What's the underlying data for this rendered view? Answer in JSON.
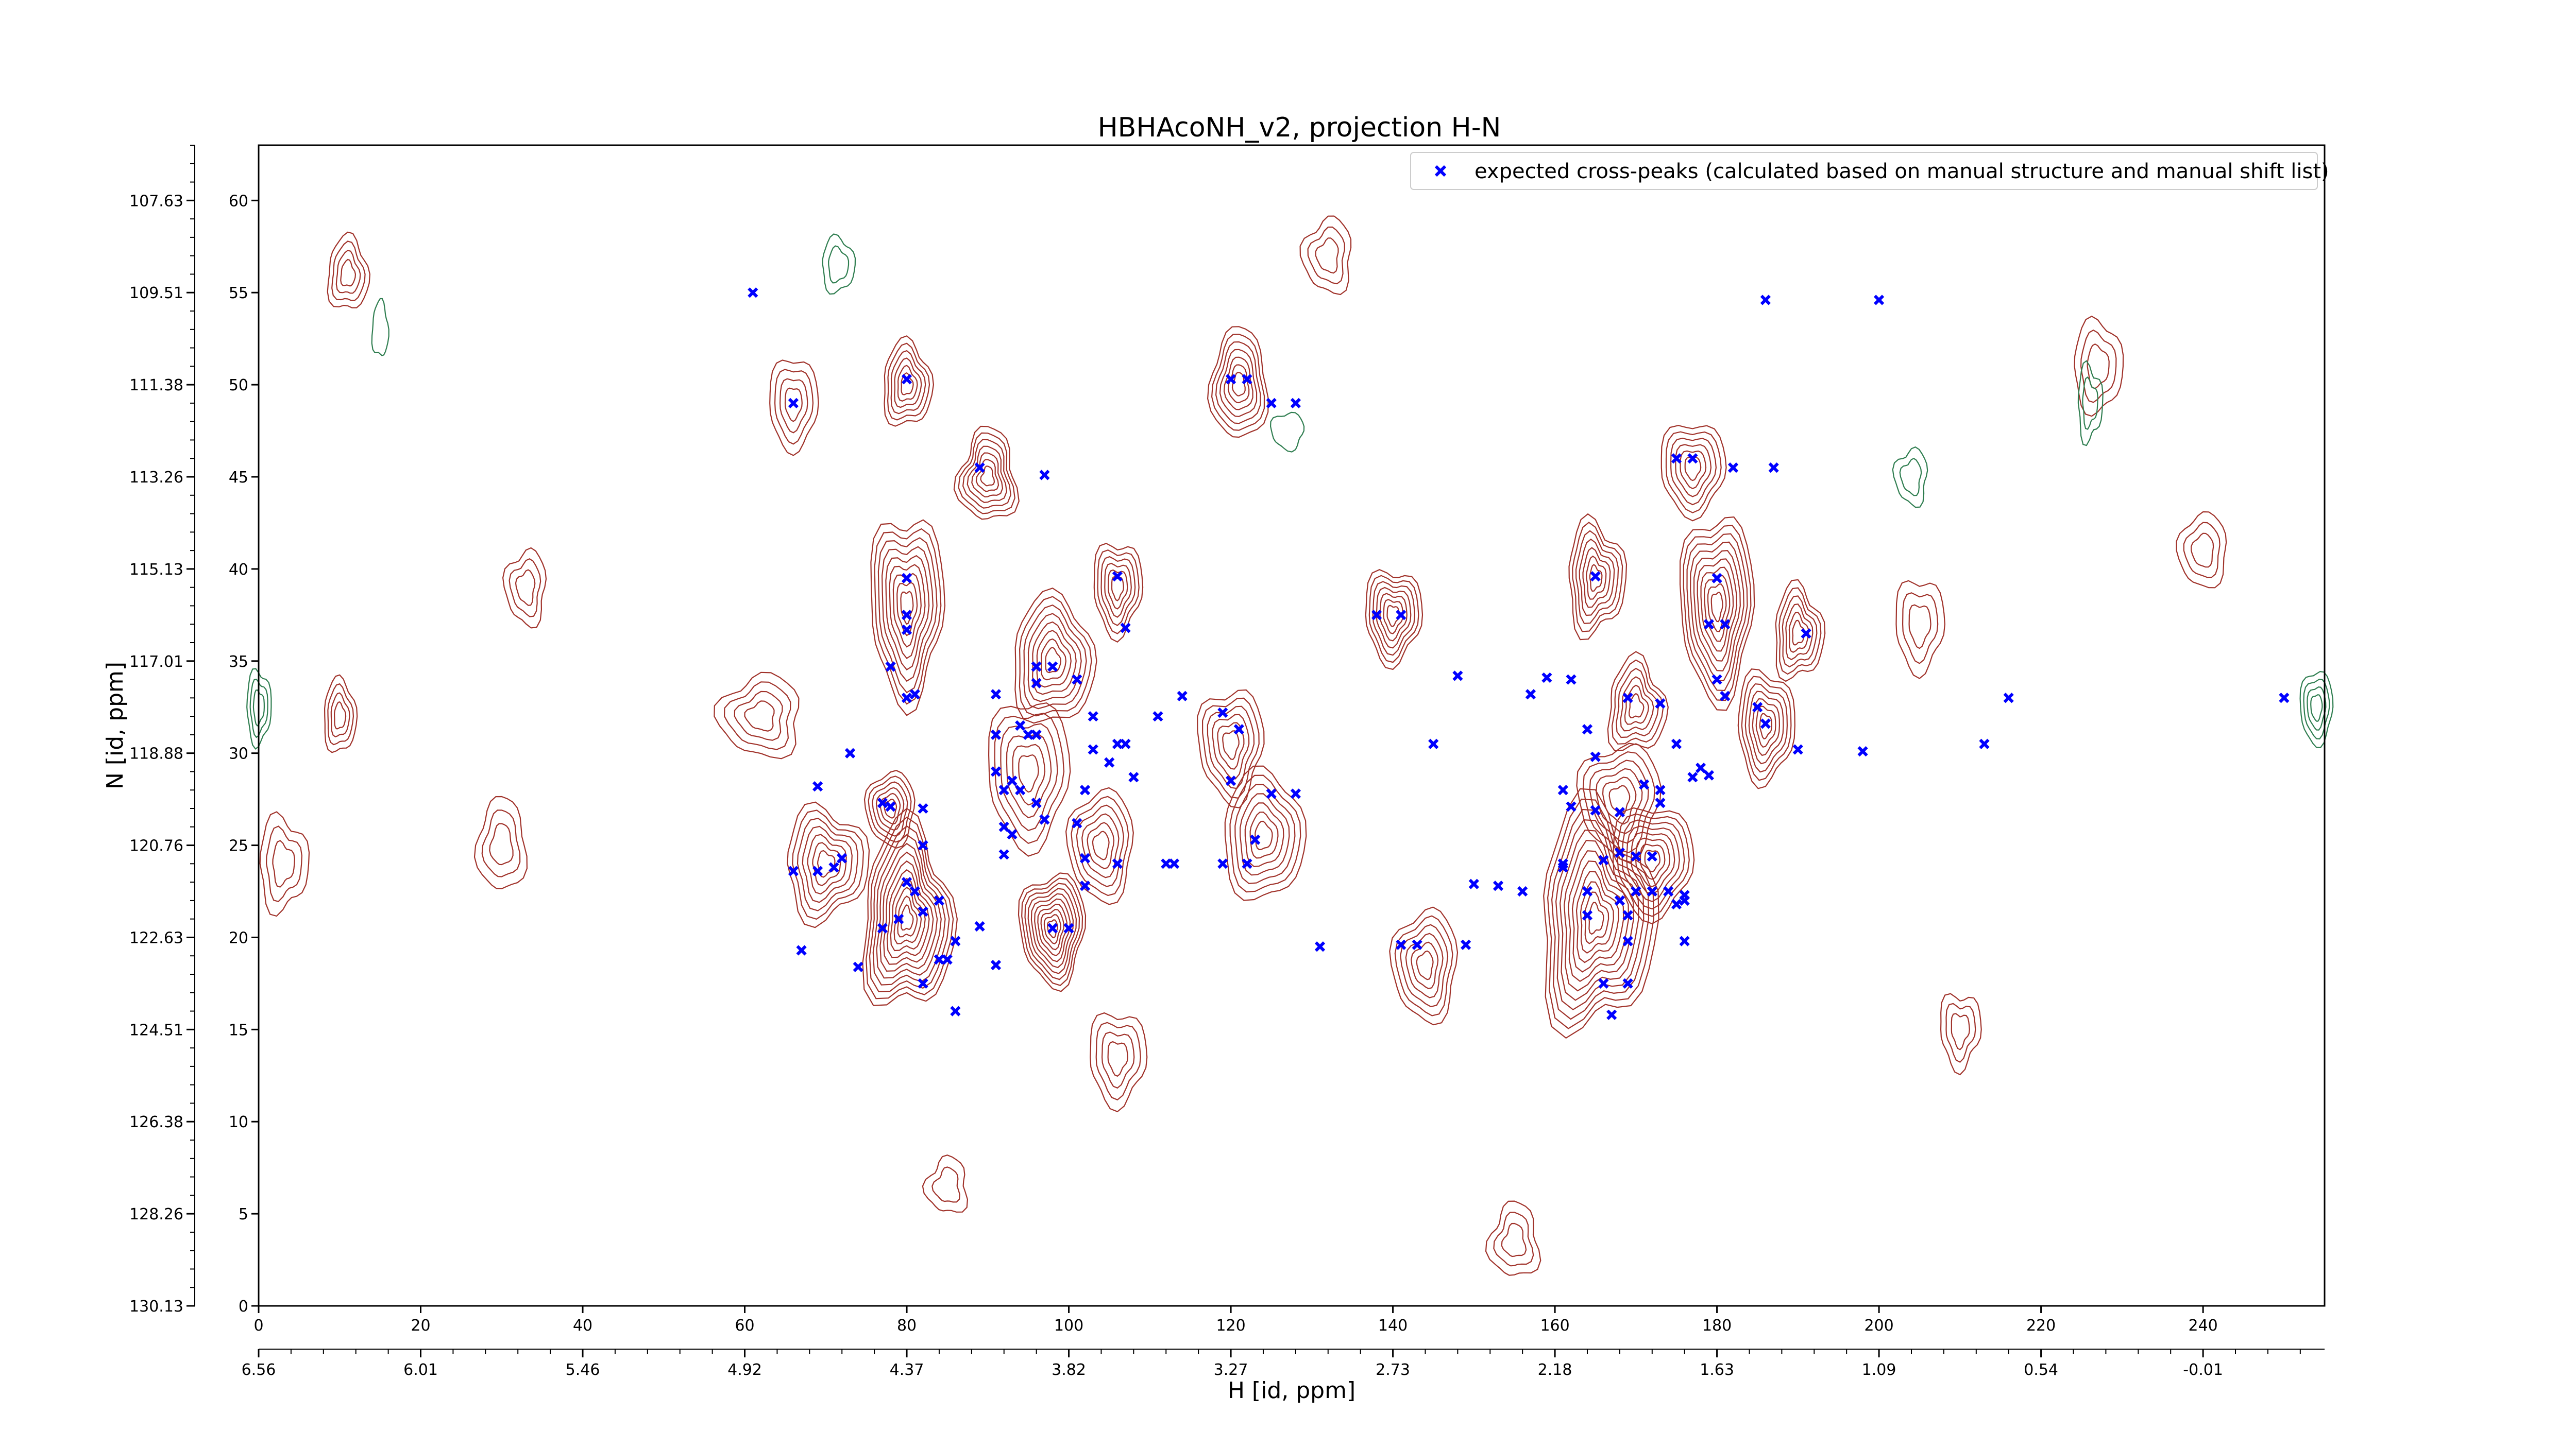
{
  "chart_data": {
    "type": "scatter",
    "title": "HBHAcoNH_v2, projection H-N",
    "xlabel": "H [id, ppm]",
    "ylabel": "N [id, ppm]",
    "xlim": [
      0,
      255
    ],
    "ylim": [
      0,
      63
    ],
    "x_ticks": [
      0,
      20,
      40,
      60,
      80,
      100,
      120,
      140,
      160,
      180,
      200,
      220,
      240
    ],
    "y_ticks": [
      0,
      5,
      10,
      15,
      20,
      25,
      30,
      35,
      40,
      45,
      50,
      55,
      60
    ],
    "secondary_x_ticks": {
      "positions": [
        0,
        20,
        40,
        60,
        80,
        100,
        120,
        140,
        160,
        180,
        200,
        220,
        240
      ],
      "labels": [
        "6.56",
        "6.01",
        "5.46",
        "4.92",
        "4.37",
        "3.82",
        "3.27",
        "2.73",
        "2.18",
        "1.63",
        "1.09",
        "0.54",
        "-0.01"
      ]
    },
    "secondary_y_ticks": {
      "positions": [
        0,
        5,
        10,
        15,
        20,
        25,
        30,
        35,
        40,
        45,
        50,
        55,
        60
      ],
      "labels": [
        "130.13",
        "128.26",
        "126.38",
        "124.51",
        "122.63",
        "120.76",
        "118.88",
        "117.01",
        "115.13",
        "113.26",
        "111.38",
        "109.51",
        "107.63"
      ]
    },
    "legend": {
      "placement": "top-right",
      "entries": [
        "expected cross-peaks (calculated based on manual structure and manual shift list)"
      ]
    },
    "grid": false,
    "colors": {
      "positive_contour": "#a0322a",
      "negative_contour": "#2e7d4f",
      "peak_marker": "#0000ff"
    },
    "series": [
      {
        "name": "expected cross-peaks (calculated based on manual structure and manual shift list)",
        "marker": "x",
        "points": [
          [
            61,
            55
          ],
          [
            66,
            49
          ],
          [
            80,
            50.3
          ],
          [
            89,
            45.5
          ],
          [
            97,
            45.1
          ],
          [
            120,
            50.3
          ],
          [
            122,
            50.3
          ],
          [
            125,
            49
          ],
          [
            128,
            49
          ],
          [
            80,
            39.5
          ],
          [
            80,
            37.5
          ],
          [
            80,
            36.7
          ],
          [
            78,
            34.7
          ],
          [
            80,
            33
          ],
          [
            81,
            33.2
          ],
          [
            96,
            34.7
          ],
          [
            98,
            34.7
          ],
          [
            101,
            34
          ],
          [
            96,
            33.8
          ],
          [
            106,
            39.6
          ],
          [
            107,
            36.8
          ],
          [
            91,
            33.2
          ],
          [
            94,
            31.5
          ],
          [
            95,
            31
          ],
          [
            91,
            31
          ],
          [
            96,
            31
          ],
          [
            91,
            29
          ],
          [
            92,
            28
          ],
          [
            93,
            28.5
          ],
          [
            94,
            28
          ],
          [
            96,
            27.3
          ],
          [
            103,
            32
          ],
          [
            103,
            30.2
          ],
          [
            102,
            28
          ],
          [
            106,
            30.5
          ],
          [
            105,
            29.5
          ],
          [
            111,
            32
          ],
          [
            114,
            33.1
          ],
          [
            119,
            32.2
          ],
          [
            121,
            31.3
          ],
          [
            120,
            28.5
          ],
          [
            73,
            30
          ],
          [
            69,
            28.2
          ],
          [
            77,
            27.3
          ],
          [
            78,
            27.1
          ],
          [
            82,
            27
          ],
          [
            71,
            23.8
          ],
          [
            72,
            24.3
          ],
          [
            69,
            23.6
          ],
          [
            66,
            23.6
          ],
          [
            82,
            25
          ],
          [
            84,
            22
          ],
          [
            81,
            22.5
          ],
          [
            80,
            23
          ],
          [
            79,
            21
          ],
          [
            82,
            21.4
          ],
          [
            77,
            20.5
          ],
          [
            67,
            19.3
          ],
          [
            74,
            18.4
          ],
          [
            84,
            18.8
          ],
          [
            85,
            18.8
          ],
          [
            86,
            19.8
          ],
          [
            82,
            17.5
          ],
          [
            86,
            16
          ],
          [
            91,
            18.5
          ],
          [
            89,
            20.6
          ],
          [
            92,
            24.5
          ],
          [
            92,
            26
          ],
          [
            93,
            25.6
          ],
          [
            97,
            26.4
          ],
          [
            98,
            20.5
          ],
          [
            100,
            20.5
          ],
          [
            101,
            26.2
          ],
          [
            102,
            24.3
          ],
          [
            102,
            22.8
          ],
          [
            106,
            24
          ],
          [
            107,
            30.5
          ],
          [
            108,
            28.7
          ],
          [
            112,
            24
          ],
          [
            113,
            24
          ],
          [
            119,
            24
          ],
          [
            122,
            24
          ],
          [
            123,
            25.3
          ],
          [
            125,
            27.8
          ],
          [
            128,
            27.8
          ],
          [
            131,
            19.5
          ],
          [
            138,
            37.5
          ],
          [
            141,
            37.5
          ],
          [
            148,
            34.2
          ],
          [
            145,
            30.5
          ],
          [
            150,
            22.9
          ],
          [
            153,
            22.8
          ],
          [
            156,
            22.5
          ],
          [
            141,
            19.6
          ],
          [
            143,
            19.6
          ],
          [
            149,
            19.6
          ],
          [
            157,
            33.2
          ],
          [
            159,
            34.1
          ],
          [
            162,
            34
          ],
          [
            164,
            31.3
          ],
          [
            165,
            39.6
          ],
          [
            169,
            33
          ],
          [
            173,
            32.7
          ],
          [
            165,
            29.8
          ],
          [
            161,
            28
          ],
          [
            162,
            27.1
          ],
          [
            165,
            26.9
          ],
          [
            168,
            26.8
          ],
          [
            171,
            28.3
          ],
          [
            173,
            27.3
          ],
          [
            173,
            28
          ],
          [
            175,
            30.5
          ],
          [
            178,
            29.2
          ],
          [
            177,
            28.7
          ],
          [
            179,
            28.8
          ],
          [
            161,
            24
          ],
          [
            161,
            23.8
          ],
          [
            166,
            24.2
          ],
          [
            168,
            24.6
          ],
          [
            170,
            24.4
          ],
          [
            172,
            24.4
          ],
          [
            164,
            22.5
          ],
          [
            168,
            22
          ],
          [
            170,
            22.5
          ],
          [
            172,
            22.5
          ],
          [
            174,
            22.5
          ],
          [
            175,
            21.8
          ],
          [
            176,
            22
          ],
          [
            176,
            22.3
          ],
          [
            164,
            21.2
          ],
          [
            169,
            21.2
          ],
          [
            169,
            19.8
          ],
          [
            176,
            19.8
          ],
          [
            166,
            17.5
          ],
          [
            169,
            17.5
          ],
          [
            167,
            15.8
          ],
          [
            175,
            46
          ],
          [
            177,
            46
          ],
          [
            182,
            45.5
          ],
          [
            187,
            45.5
          ],
          [
            180,
            39.5
          ],
          [
            179,
            37
          ],
          [
            181,
            37
          ],
          [
            191,
            36.5
          ],
          [
            180,
            34
          ],
          [
            181,
            33.1
          ],
          [
            185,
            32.5
          ],
          [
            186,
            31.6
          ],
          [
            190,
            30.2
          ],
          [
            198,
            30.1
          ],
          [
            213,
            30.5
          ],
          [
            216,
            33
          ],
          [
            186,
            54.6
          ],
          [
            200,
            54.6
          ],
          [
            250,
            33
          ]
        ]
      }
    ],
    "contours": [
      {
        "sign": "positive",
        "center": [
          80,
          38
        ],
        "spread": [
          4.5,
          5
        ],
        "levels": 9
      },
      {
        "sign": "positive",
        "center": [
          98,
          35
        ],
        "spread": [
          5,
          3.5
        ],
        "levels": 8
      },
      {
        "sign": "positive",
        "center": [
          106,
          39
        ],
        "spread": [
          3,
          2.5
        ],
        "levels": 6
      },
      {
        "sign": "positive",
        "center": [
          80,
          21
        ],
        "spread": [
          5.5,
          5
        ],
        "levels": 12
      },
      {
        "sign": "positive",
        "center": [
          98,
          20.5
        ],
        "spread": [
          4,
          3
        ],
        "levels": 10
      },
      {
        "sign": "positive",
        "center": [
          70,
          24
        ],
        "spread": [
          5,
          3
        ],
        "levels": 7
      },
      {
        "sign": "positive",
        "center": [
          78,
          27
        ],
        "spread": [
          3,
          2
        ],
        "levels": 6
      },
      {
        "sign": "positive",
        "center": [
          95,
          29
        ],
        "spread": [
          5,
          4
        ],
        "levels": 6
      },
      {
        "sign": "positive",
        "center": [
          104,
          25
        ],
        "spread": [
          4,
          3
        ],
        "levels": 6
      },
      {
        "sign": "positive",
        "center": [
          120,
          30.5
        ],
        "spread": [
          4,
          3
        ],
        "levels": 6
      },
      {
        "sign": "positive",
        "center": [
          124,
          25.5
        ],
        "spread": [
          5,
          3.5
        ],
        "levels": 7
      },
      {
        "sign": "positive",
        "center": [
          90,
          45
        ],
        "spread": [
          3.5,
          2.5
        ],
        "levels": 7
      },
      {
        "sign": "positive",
        "center": [
          80,
          50
        ],
        "spread": [
          3,
          2.3
        ],
        "levels": 6
      },
      {
        "sign": "positive",
        "center": [
          121,
          50
        ],
        "spread": [
          3.5,
          3
        ],
        "levels": 7
      },
      {
        "sign": "positive",
        "center": [
          140,
          37.5
        ],
        "spread": [
          3.5,
          2.5
        ],
        "levels": 7
      },
      {
        "sign": "positive",
        "center": [
          144,
          18.5
        ],
        "spread": [
          4,
          3
        ],
        "levels": 6
      },
      {
        "sign": "positive",
        "center": [
          165,
          21
        ],
        "spread": [
          7,
          6
        ],
        "levels": 12
      },
      {
        "sign": "positive",
        "center": [
          172,
          24.2
        ],
        "spread": [
          5,
          3
        ],
        "levels": 8
      },
      {
        "sign": "positive",
        "center": [
          180,
          38
        ],
        "spread": [
          4.5,
          5
        ],
        "levels": 10
      },
      {
        "sign": "positive",
        "center": [
          190,
          36.5
        ],
        "spread": [
          3,
          2.5
        ],
        "levels": 6
      },
      {
        "sign": "positive",
        "center": [
          186,
          31.5
        ],
        "spread": [
          3.5,
          3
        ],
        "levels": 7
      },
      {
        "sign": "positive",
        "center": [
          170,
          32.5
        ],
        "spread": [
          3.5,
          2.5
        ],
        "levels": 6
      },
      {
        "sign": "positive",
        "center": [
          165,
          39.5
        ],
        "spread": [
          3.5,
          3
        ],
        "levels": 7
      },
      {
        "sign": "positive",
        "center": [
          177,
          45.5
        ],
        "spread": [
          4,
          2.5
        ],
        "levels": 6
      },
      {
        "sign": "positive",
        "center": [
          168,
          27.5
        ],
        "spread": [
          5,
          3
        ],
        "levels": 6
      },
      {
        "sign": "positive",
        "center": [
          62,
          32
        ],
        "spread": [
          5,
          2.2
        ],
        "levels": 4
      },
      {
        "sign": "positive",
        "center": [
          10,
          32
        ],
        "spread": [
          2,
          2
        ],
        "levels": 4
      },
      {
        "sign": "positive",
        "center": [
          66,
          49
        ],
        "spread": [
          3,
          2.5
        ],
        "levels": 4
      },
      {
        "sign": "positive",
        "center": [
          11,
          56
        ],
        "spread": [
          2.5,
          2
        ],
        "levels": 4
      },
      {
        "sign": "positive",
        "center": [
          33,
          39
        ],
        "spread": [
          2.5,
          2
        ],
        "levels": 3
      },
      {
        "sign": "positive",
        "center": [
          30,
          25
        ],
        "spread": [
          3,
          2.5
        ],
        "levels": 3
      },
      {
        "sign": "positive",
        "center": [
          106,
          13.5
        ],
        "spread": [
          3.5,
          2.5
        ],
        "levels": 4
      },
      {
        "sign": "positive",
        "center": [
          210,
          15
        ],
        "spread": [
          2.5,
          2
        ],
        "levels": 3
      },
      {
        "sign": "positive",
        "center": [
          205,
          37
        ],
        "spread": [
          3,
          2.5
        ],
        "levels": 3
      },
      {
        "sign": "positive",
        "center": [
          227,
          51
        ],
        "spread": [
          3,
          2.5
        ],
        "levels": 3
      },
      {
        "sign": "positive",
        "center": [
          240,
          41
        ],
        "spread": [
          3,
          2
        ],
        "levels": 3
      },
      {
        "sign": "positive",
        "center": [
          3,
          24
        ],
        "spread": [
          3,
          2.5
        ],
        "levels": 3
      },
      {
        "sign": "positive",
        "center": [
          85,
          6.5
        ],
        "spread": [
          2.5,
          1.5
        ],
        "levels": 2
      },
      {
        "sign": "positive",
        "center": [
          155,
          3.5
        ],
        "spread": [
          3,
          2
        ],
        "levels": 3
      },
      {
        "sign": "positive",
        "center": [
          132,
          57
        ],
        "spread": [
          3,
          2
        ],
        "levels": 3
      },
      {
        "sign": "negative",
        "center": [
          254,
          32.5
        ],
        "spread": [
          2,
          2
        ],
        "levels": 4
      },
      {
        "sign": "negative",
        "center": [
          0,
          32.5
        ],
        "spread": [
          1.5,
          2
        ],
        "levels": 3
      },
      {
        "sign": "negative",
        "center": [
          71.5,
          56.5
        ],
        "spread": [
          2,
          1.5
        ],
        "levels": 2
      },
      {
        "sign": "negative",
        "center": [
          204,
          45
        ],
        "spread": [
          2,
          1.5
        ],
        "levels": 2
      },
      {
        "sign": "negative",
        "center": [
          226,
          49
        ],
        "spread": [
          1.5,
          2
        ],
        "levels": 2
      },
      {
        "sign": "negative",
        "center": [
          15,
          53
        ],
        "spread": [
          1,
          1.5
        ],
        "levels": 1
      },
      {
        "sign": "negative",
        "center": [
          127,
          47.5
        ],
        "spread": [
          2,
          1
        ],
        "levels": 1
      }
    ]
  }
}
